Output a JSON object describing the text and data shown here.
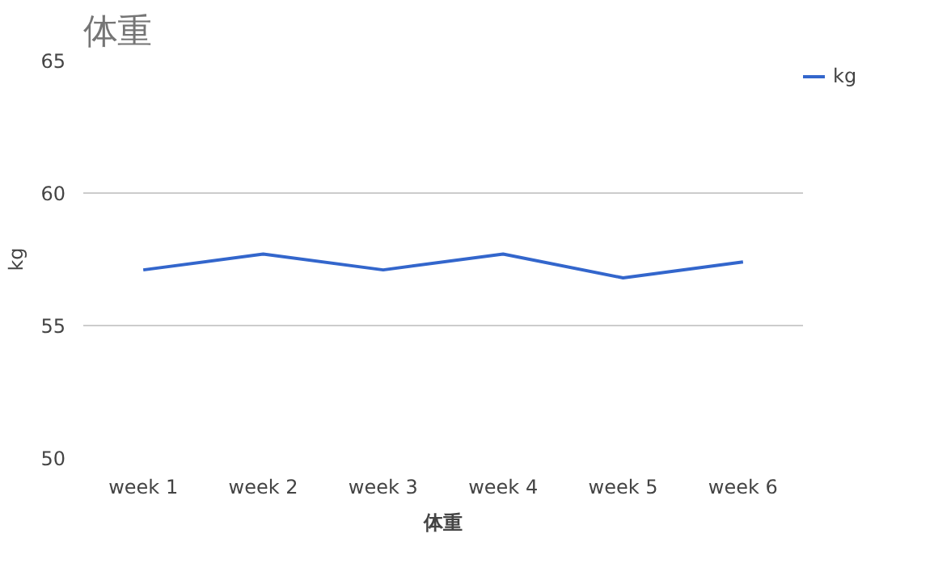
{
  "chart_data": {
    "type": "line",
    "title": "体重",
    "xlabel": "体重",
    "ylabel": "kg",
    "categories": [
      "week 1",
      "week 2",
      "week 3",
      "week 4",
      "week 5",
      "week 6"
    ],
    "series": [
      {
        "name": "kg",
        "color": "#3366cc",
        "values": [
          57.1,
          57.7,
          57.1,
          57.7,
          56.8,
          57.4
        ]
      }
    ],
    "ylim": [
      50,
      65
    ],
    "yticks": [
      50,
      55,
      60,
      65
    ],
    "grid": "y",
    "legend": "top right"
  }
}
